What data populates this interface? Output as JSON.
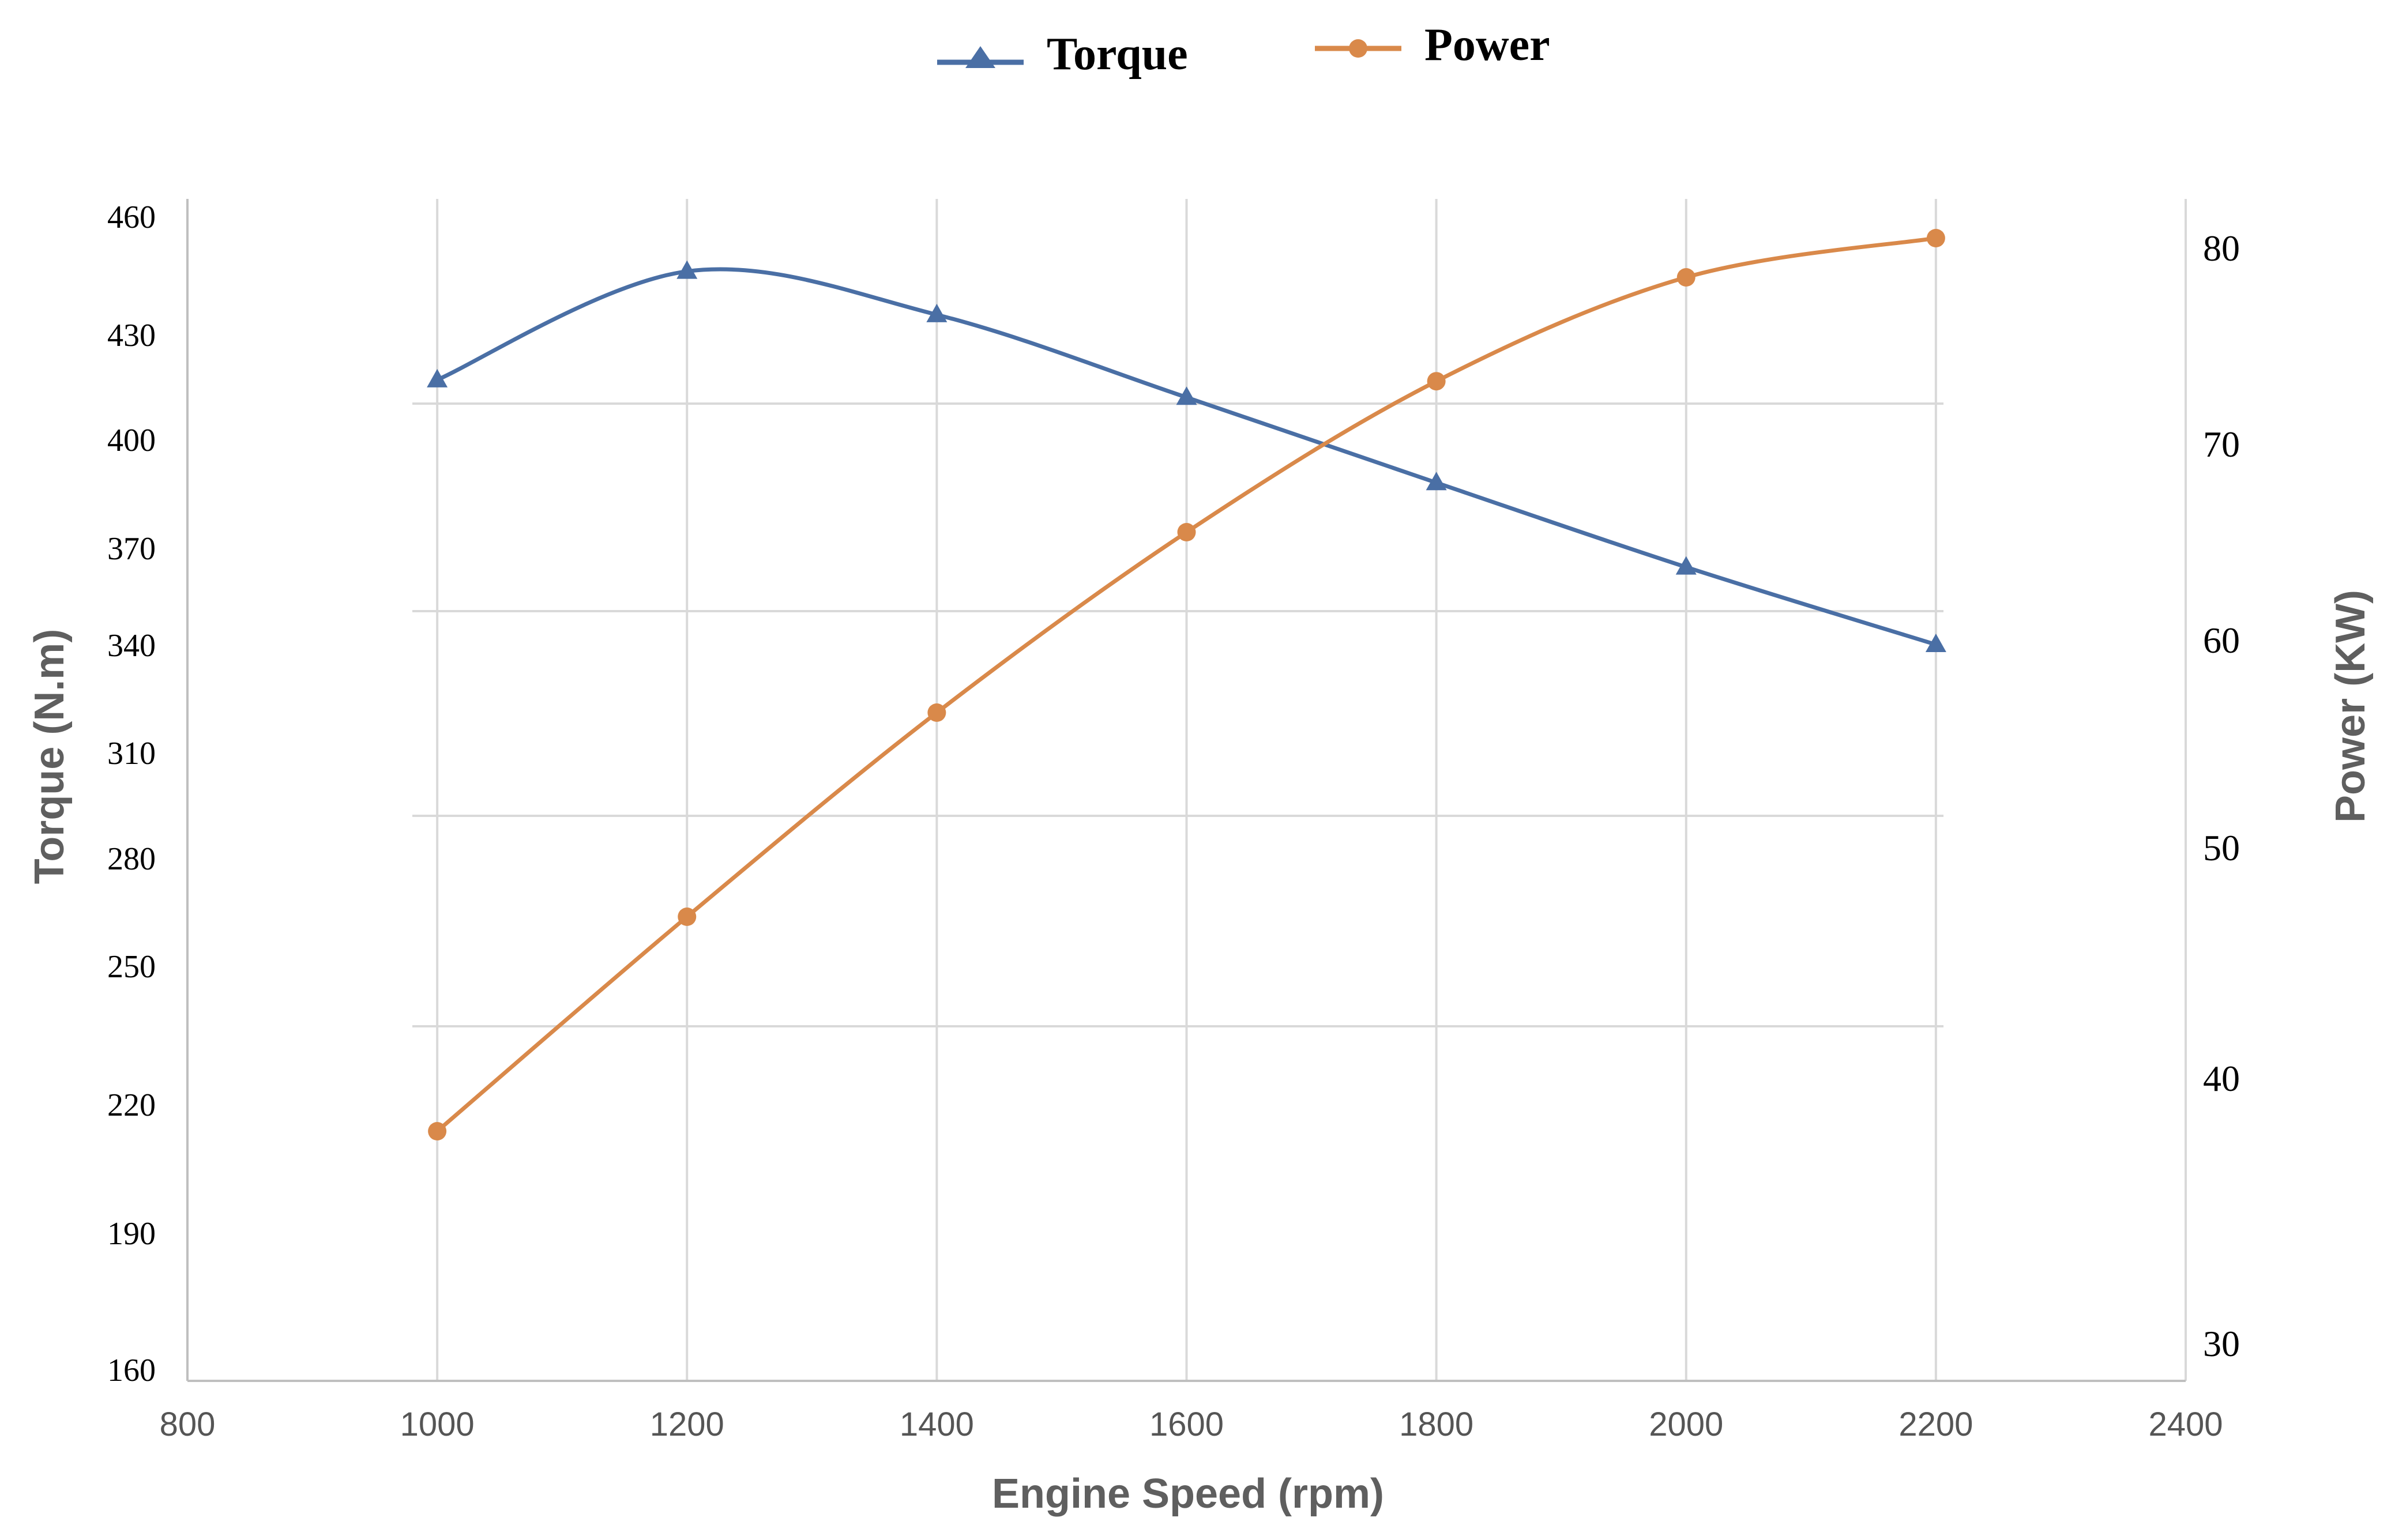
{
  "chart_data": {
    "type": "line",
    "title": "",
    "xlabel": "Engine Speed (rpm)",
    "ylabel_left": "Torque (N.m)",
    "ylabel_right": "Power (KW)",
    "x": [
      1000,
      1200,
      1400,
      1600,
      1800,
      2000,
      2200
    ],
    "xlim": [
      800,
      2400
    ],
    "x_ticks": [
      800,
      1000,
      1200,
      1400,
      1600,
      1800,
      2000,
      2200,
      2400
    ],
    "y_left_ticks": [
      160,
      190,
      220,
      250,
      280,
      310,
      340,
      370,
      400,
      430,
      460
    ],
    "y_right_ticks": [
      30,
      40,
      50,
      60,
      70,
      80
    ],
    "series": [
      {
        "name": "Torque",
        "axis": "left",
        "marker": "triangle",
        "color": "#4a6fa5",
        "values": [
          417,
          446,
          435,
          412,
          388,
          364,
          340
        ]
      },
      {
        "name": "Power",
        "axis": "right",
        "marker": "circle",
        "color": "#d9894a",
        "values": [
          38,
          47,
          56.5,
          65.5,
          73.2,
          78.5,
          80.5
        ]
      }
    ],
    "legend_position": "top-center",
    "grid": true
  }
}
